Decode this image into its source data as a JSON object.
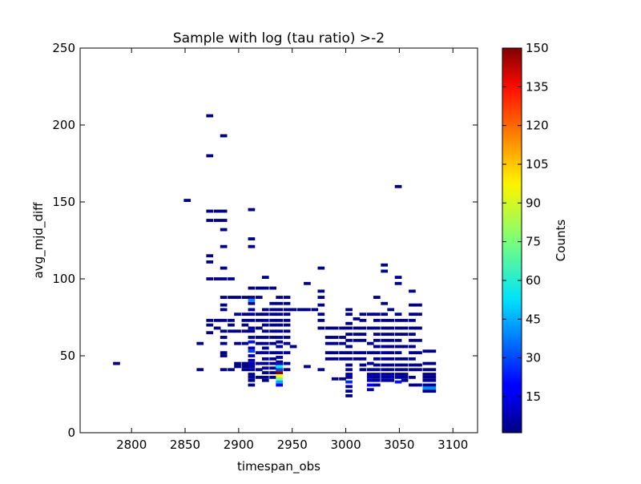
{
  "chart_data": {
    "type": "heatmap",
    "title": "Sample with log (tau ratio) >-2",
    "xlabel": "timespan_obs",
    "ylabel": "avg_mjd_diff",
    "xlim": [
      2752,
      3123
    ],
    "ylim": [
      0,
      250
    ],
    "x_ticks": [
      2800,
      2850,
      2900,
      2950,
      3000,
      3050,
      3100
    ],
    "y_ticks": [
      0,
      50,
      100,
      150,
      200,
      250
    ],
    "colorbar": {
      "label": "Counts",
      "range": [
        1,
        150
      ],
      "ticks": [
        15,
        30,
        45,
        60,
        75,
        90,
        105,
        120,
        135,
        150
      ],
      "colormap": "jet"
    },
    "grid": false,
    "bin_width": 6.5,
    "bin_height": 2,
    "cells": [
      [
        2786,
        45,
        2
      ],
      [
        2852,
        151,
        2
      ],
      [
        2864,
        41,
        2
      ],
      [
        2864,
        58,
        2
      ],
      [
        2873,
        206,
        2
      ],
      [
        2873,
        180,
        2
      ],
      [
        2873,
        144,
        2
      ],
      [
        2873,
        138,
        2
      ],
      [
        2873,
        115,
        2
      ],
      [
        2873,
        111,
        2
      ],
      [
        2873,
        100,
        2
      ],
      [
        2873,
        73,
        2
      ],
      [
        2873,
        70,
        2
      ],
      [
        2873,
        65,
        2
      ],
      [
        2880,
        144,
        2
      ],
      [
        2880,
        138,
        2
      ],
      [
        2880,
        100,
        2
      ],
      [
        2880,
        73,
        2
      ],
      [
        2880,
        68,
        2
      ],
      [
        2886,
        193,
        2
      ],
      [
        2886,
        144,
        2
      ],
      [
        2886,
        138,
        2
      ],
      [
        2886,
        132,
        2
      ],
      [
        2886,
        121,
        2
      ],
      [
        2886,
        107,
        2
      ],
      [
        2886,
        100,
        2
      ],
      [
        2886,
        88,
        2
      ],
      [
        2886,
        83,
        2
      ],
      [
        2886,
        80,
        2
      ],
      [
        2886,
        73,
        2
      ],
      [
        2886,
        66,
        2
      ],
      [
        2886,
        62,
        2
      ],
      [
        2886,
        58,
        2
      ],
      [
        2886,
        52,
        2
      ],
      [
        2886,
        50,
        2
      ],
      [
        2886,
        41,
        2
      ],
      [
        2893,
        100,
        2
      ],
      [
        2893,
        88,
        2
      ],
      [
        2893,
        73,
        2
      ],
      [
        2893,
        70,
        2
      ],
      [
        2893,
        66,
        2
      ],
      [
        2893,
        41,
        2
      ],
      [
        2899,
        88,
        2
      ],
      [
        2899,
        77,
        2
      ],
      [
        2899,
        66,
        2
      ],
      [
        2899,
        58,
        2
      ],
      [
        2899,
        45,
        2
      ],
      [
        2899,
        43,
        2
      ],
      [
        2906,
        88,
        2
      ],
      [
        2906,
        77,
        2
      ],
      [
        2906,
        73,
        2
      ],
      [
        2906,
        70,
        2
      ],
      [
        2906,
        66,
        2
      ],
      [
        2906,
        58,
        2
      ],
      [
        2906,
        45,
        2
      ],
      [
        2906,
        43,
        2
      ],
      [
        2906,
        41,
        2
      ],
      [
        2912,
        145,
        2
      ],
      [
        2912,
        126,
        2
      ],
      [
        2912,
        121,
        2
      ],
      [
        2912,
        94,
        2
      ],
      [
        2912,
        88,
        2
      ],
      [
        2912,
        86,
        40
      ],
      [
        2912,
        84,
        2
      ],
      [
        2912,
        80,
        4
      ],
      [
        2912,
        77,
        4
      ],
      [
        2912,
        73,
        2
      ],
      [
        2912,
        68,
        4
      ],
      [
        2912,
        66,
        4
      ],
      [
        2912,
        62,
        4
      ],
      [
        2912,
        59,
        22
      ],
      [
        2912,
        55,
        6
      ],
      [
        2912,
        53,
        28
      ],
      [
        2912,
        50,
        6
      ],
      [
        2912,
        47,
        6
      ],
      [
        2912,
        45,
        8
      ],
      [
        2912,
        43,
        6
      ],
      [
        2912,
        41,
        6
      ],
      [
        2912,
        38,
        6
      ],
      [
        2912,
        36,
        4
      ],
      [
        2912,
        34,
        4
      ],
      [
        2912,
        31,
        2
      ],
      [
        2919,
        94,
        2
      ],
      [
        2919,
        88,
        2
      ],
      [
        2919,
        77,
        2
      ],
      [
        2919,
        73,
        2
      ],
      [
        2919,
        68,
        2
      ],
      [
        2919,
        62,
        2
      ],
      [
        2919,
        58,
        2
      ],
      [
        2919,
        52,
        2
      ],
      [
        2919,
        45,
        4
      ],
      [
        2919,
        41,
        4
      ],
      [
        2919,
        36,
        2
      ],
      [
        2925,
        101,
        2
      ],
      [
        2925,
        94,
        2
      ],
      [
        2925,
        80,
        2
      ],
      [
        2925,
        77,
        2
      ],
      [
        2925,
        73,
        4
      ],
      [
        2925,
        70,
        4
      ],
      [
        2925,
        66,
        4
      ],
      [
        2925,
        62,
        4
      ],
      [
        2925,
        58,
        4
      ],
      [
        2925,
        55,
        4
      ],
      [
        2925,
        52,
        4
      ],
      [
        2925,
        48,
        4
      ],
      [
        2925,
        45,
        4
      ],
      [
        2925,
        42,
        4
      ],
      [
        2925,
        39,
        4
      ],
      [
        2925,
        36,
        4
      ],
      [
        2925,
        34,
        2
      ],
      [
        2932,
        94,
        2
      ],
      [
        2932,
        84,
        2
      ],
      [
        2932,
        80,
        2
      ],
      [
        2932,
        77,
        2
      ],
      [
        2932,
        73,
        2
      ],
      [
        2932,
        70,
        2
      ],
      [
        2932,
        66,
        2
      ],
      [
        2932,
        62,
        2
      ],
      [
        2932,
        58,
        2
      ],
      [
        2932,
        52,
        2
      ],
      [
        2932,
        48,
        4
      ],
      [
        2932,
        45,
        4
      ],
      [
        2932,
        42,
        4
      ],
      [
        2932,
        39,
        4
      ],
      [
        2932,
        36,
        4
      ],
      [
        2938,
        88,
        2
      ],
      [
        2938,
        84,
        2
      ],
      [
        2938,
        80,
        2
      ],
      [
        2938,
        77,
        4
      ],
      [
        2938,
        73,
        4
      ],
      [
        2938,
        70,
        4
      ],
      [
        2938,
        66,
        6
      ],
      [
        2938,
        62,
        4
      ],
      [
        2938,
        59,
        4
      ],
      [
        2938,
        56,
        6
      ],
      [
        2938,
        52,
        6
      ],
      [
        2938,
        49,
        8
      ],
      [
        2938,
        46,
        8
      ],
      [
        2938,
        44,
        10
      ],
      [
        2938,
        43,
        55
      ],
      [
        2938,
        41,
        30
      ],
      [
        2938,
        39,
        150
      ],
      [
        2938,
        37,
        95
      ],
      [
        2938,
        35,
        75
      ],
      [
        2938,
        33,
        45
      ],
      [
        2938,
        31,
        20
      ],
      [
        2945,
        88,
        2
      ],
      [
        2945,
        84,
        2
      ],
      [
        2945,
        80,
        2
      ],
      [
        2945,
        77,
        2
      ],
      [
        2945,
        73,
        2
      ],
      [
        2945,
        70,
        2
      ],
      [
        2945,
        66,
        2
      ],
      [
        2945,
        62,
        2
      ],
      [
        2945,
        58,
        2
      ],
      [
        2945,
        52,
        2
      ],
      [
        2945,
        45,
        2
      ],
      [
        2945,
        41,
        2
      ],
      [
        2951,
        80,
        2
      ],
      [
        2951,
        56,
        2
      ],
      [
        2958,
        80,
        2
      ],
      [
        2964,
        97,
        2
      ],
      [
        2964,
        80,
        2
      ],
      [
        2964,
        43,
        2
      ],
      [
        2971,
        80,
        2
      ],
      [
        2977,
        107,
        2
      ],
      [
        2977,
        92,
        2
      ],
      [
        2977,
        88,
        2
      ],
      [
        2977,
        83,
        2
      ],
      [
        2977,
        77,
        2
      ],
      [
        2977,
        73,
        2
      ],
      [
        2977,
        68,
        2
      ],
      [
        2977,
        41,
        2
      ],
      [
        2984,
        68,
        2
      ],
      [
        2984,
        62,
        2
      ],
      [
        2984,
        58,
        2
      ],
      [
        2984,
        52,
        2
      ],
      [
        2984,
        48,
        2
      ],
      [
        2990,
        68,
        2
      ],
      [
        2990,
        62,
        2
      ],
      [
        2990,
        58,
        2
      ],
      [
        2990,
        52,
        2
      ],
      [
        2990,
        48,
        2
      ],
      [
        2990,
        35,
        2
      ],
      [
        2997,
        68,
        2
      ],
      [
        2997,
        62,
        2
      ],
      [
        2997,
        58,
        2
      ],
      [
        2997,
        52,
        2
      ],
      [
        2997,
        48,
        2
      ],
      [
        2997,
        35,
        2
      ],
      [
        3003,
        80,
        2
      ],
      [
        3003,
        77,
        2
      ],
      [
        3003,
        71,
        2
      ],
      [
        3003,
        68,
        2
      ],
      [
        3003,
        64,
        2
      ],
      [
        3003,
        60,
        4
      ],
      [
        3003,
        56,
        4
      ],
      [
        3003,
        52,
        2
      ],
      [
        3003,
        48,
        4
      ],
      [
        3003,
        44,
        4
      ],
      [
        3003,
        41,
        8
      ],
      [
        3003,
        38,
        6
      ],
      [
        3003,
        36,
        4
      ],
      [
        3003,
        33,
        25
      ],
      [
        3003,
        30,
        4
      ],
      [
        3003,
        27,
        2
      ],
      [
        3003,
        24,
        2
      ],
      [
        3010,
        74,
        2
      ],
      [
        3010,
        68,
        2
      ],
      [
        3010,
        64,
        2
      ],
      [
        3010,
        60,
        2
      ],
      [
        3010,
        52,
        2
      ],
      [
        3010,
        48,
        2
      ],
      [
        3016,
        77,
        2
      ],
      [
        3016,
        73,
        2
      ],
      [
        3016,
        68,
        2
      ],
      [
        3016,
        64,
        2
      ],
      [
        3016,
        60,
        2
      ],
      [
        3016,
        52,
        2
      ],
      [
        3016,
        48,
        2
      ],
      [
        3016,
        44,
        2
      ],
      [
        3016,
        41,
        2
      ],
      [
        3023,
        77,
        2
      ],
      [
        3023,
        68,
        2
      ],
      [
        3023,
        58,
        2
      ],
      [
        3023,
        52,
        2
      ],
      [
        3023,
        45,
        4
      ],
      [
        3023,
        41,
        4
      ],
      [
        3023,
        38,
        6
      ],
      [
        3023,
        36,
        6
      ],
      [
        3023,
        34,
        8
      ],
      [
        3023,
        31,
        18
      ],
      [
        3023,
        28,
        4
      ],
      [
        3029,
        88,
        2
      ],
      [
        3029,
        77,
        2
      ],
      [
        3029,
        73,
        2
      ],
      [
        3029,
        68,
        2
      ],
      [
        3029,
        64,
        2
      ],
      [
        3029,
        60,
        2
      ],
      [
        3029,
        56,
        2
      ],
      [
        3029,
        52,
        2
      ],
      [
        3029,
        48,
        2
      ],
      [
        3029,
        44,
        4
      ],
      [
        3029,
        41,
        4
      ],
      [
        3029,
        38,
        6
      ],
      [
        3029,
        36,
        4
      ],
      [
        3029,
        34,
        6
      ],
      [
        3029,
        31,
        6
      ],
      [
        3036,
        109,
        2
      ],
      [
        3036,
        105,
        2
      ],
      [
        3036,
        84,
        2
      ],
      [
        3036,
        77,
        2
      ],
      [
        3036,
        73,
        2
      ],
      [
        3036,
        68,
        2
      ],
      [
        3036,
        64,
        4
      ],
      [
        3036,
        60,
        4
      ],
      [
        3036,
        56,
        4
      ],
      [
        3036,
        52,
        4
      ],
      [
        3036,
        48,
        4
      ],
      [
        3036,
        44,
        4
      ],
      [
        3036,
        41,
        6
      ],
      [
        3036,
        38,
        6
      ],
      [
        3036,
        36,
        6
      ],
      [
        3036,
        34,
        6
      ],
      [
        3042,
        80,
        2
      ],
      [
        3042,
        73,
        2
      ],
      [
        3042,
        68,
        2
      ],
      [
        3042,
        64,
        2
      ],
      [
        3042,
        60,
        2
      ],
      [
        3042,
        56,
        2
      ],
      [
        3042,
        52,
        2
      ],
      [
        3042,
        48,
        2
      ],
      [
        3042,
        44,
        4
      ],
      [
        3042,
        41,
        4
      ],
      [
        3042,
        38,
        6
      ],
      [
        3042,
        36,
        6
      ],
      [
        3042,
        34,
        6
      ],
      [
        3049,
        160,
        2
      ],
      [
        3049,
        101,
        2
      ],
      [
        3049,
        97,
        2
      ],
      [
        3049,
        77,
        2
      ],
      [
        3049,
        73,
        2
      ],
      [
        3049,
        68,
        2
      ],
      [
        3049,
        64,
        2
      ],
      [
        3049,
        60,
        2
      ],
      [
        3049,
        56,
        2
      ],
      [
        3049,
        52,
        2
      ],
      [
        3049,
        48,
        2
      ],
      [
        3049,
        44,
        4
      ],
      [
        3049,
        41,
        4
      ],
      [
        3049,
        38,
        4
      ],
      [
        3049,
        36,
        4
      ],
      [
        3049,
        33,
        22
      ],
      [
        3055,
        73,
        2
      ],
      [
        3055,
        68,
        2
      ],
      [
        3055,
        64,
        2
      ],
      [
        3055,
        56,
        2
      ],
      [
        3055,
        48,
        2
      ],
      [
        3055,
        44,
        2
      ],
      [
        3055,
        41,
        4
      ],
      [
        3055,
        38,
        4
      ],
      [
        3055,
        36,
        4
      ],
      [
        3055,
        34,
        4
      ],
      [
        3062,
        92,
        2
      ],
      [
        3062,
        83,
        2
      ],
      [
        3062,
        77,
        2
      ],
      [
        3062,
        73,
        2
      ],
      [
        3062,
        68,
        2
      ],
      [
        3062,
        64,
        2
      ],
      [
        3062,
        60,
        2
      ],
      [
        3062,
        56,
        2
      ],
      [
        3062,
        52,
        2
      ],
      [
        3062,
        48,
        2
      ],
      [
        3062,
        44,
        2
      ],
      [
        3062,
        41,
        2
      ],
      [
        3062,
        36,
        2
      ],
      [
        3062,
        31,
        2
      ],
      [
        3068,
        83,
        2
      ],
      [
        3068,
        77,
        2
      ],
      [
        3068,
        68,
        2
      ],
      [
        3068,
        60,
        2
      ],
      [
        3068,
        52,
        2
      ],
      [
        3068,
        44,
        2
      ],
      [
        3068,
        41,
        2
      ],
      [
        3068,
        31,
        4
      ],
      [
        3075,
        53,
        2
      ],
      [
        3075,
        45,
        2
      ],
      [
        3075,
        41,
        2
      ],
      [
        3075,
        38,
        4
      ],
      [
        3075,
        36,
        2
      ],
      [
        3075,
        34,
        4
      ],
      [
        3075,
        31,
        4
      ],
      [
        3075,
        29,
        40
      ],
      [
        3075,
        27,
        2
      ],
      [
        3081,
        53,
        2
      ],
      [
        3081,
        45,
        2
      ],
      [
        3081,
        41,
        2
      ],
      [
        3081,
        38,
        4
      ],
      [
        3081,
        36,
        2
      ],
      [
        3081,
        34,
        4
      ],
      [
        3081,
        31,
        4
      ],
      [
        3081,
        29,
        40
      ],
      [
        3081,
        27,
        2
      ]
    ]
  }
}
